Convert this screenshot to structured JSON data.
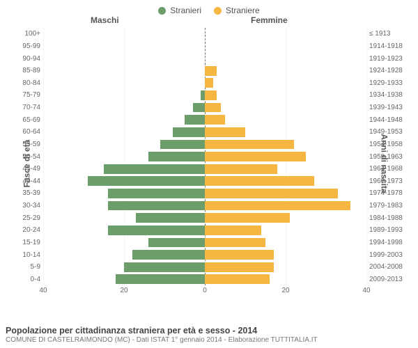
{
  "legend": {
    "male_label": "Stranieri",
    "female_label": "Straniere",
    "male_color": "#6b9e6b",
    "female_color": "#f5b642"
  },
  "headers": {
    "left": "Maschi",
    "right": "Femmine"
  },
  "yaxis": {
    "left_title": "Fasce di età",
    "right_title": "Anni di nascita"
  },
  "xaxis": {
    "max": 40,
    "ticks_left": [
      40,
      20,
      0
    ],
    "ticks_right": [
      0,
      20,
      40
    ],
    "tick_labels": [
      "40",
      "20",
      "0",
      "20",
      "40"
    ],
    "tick_positions_pct": [
      0,
      25,
      50,
      75,
      100
    ]
  },
  "grid": {
    "color": "#f5f5f5",
    "positions_pct": [
      0,
      25,
      50,
      75,
      100
    ]
  },
  "rows": [
    {
      "age": "100+",
      "birth": "≤ 1913",
      "m": 0,
      "f": 0
    },
    {
      "age": "95-99",
      "birth": "1914-1918",
      "m": 0,
      "f": 0
    },
    {
      "age": "90-94",
      "birth": "1919-1923",
      "m": 0,
      "f": 0
    },
    {
      "age": "85-89",
      "birth": "1924-1928",
      "m": 0,
      "f": 3
    },
    {
      "age": "80-84",
      "birth": "1929-1933",
      "m": 0,
      "f": 2
    },
    {
      "age": "75-79",
      "birth": "1934-1938",
      "m": 1,
      "f": 3
    },
    {
      "age": "70-74",
      "birth": "1939-1943",
      "m": 3,
      "f": 4
    },
    {
      "age": "65-69",
      "birth": "1944-1948",
      "m": 5,
      "f": 5
    },
    {
      "age": "60-64",
      "birth": "1949-1953",
      "m": 8,
      "f": 10
    },
    {
      "age": "55-59",
      "birth": "1954-1958",
      "m": 11,
      "f": 22
    },
    {
      "age": "50-54",
      "birth": "1959-1963",
      "m": 14,
      "f": 25
    },
    {
      "age": "45-49",
      "birth": "1964-1968",
      "m": 25,
      "f": 18
    },
    {
      "age": "40-44",
      "birth": "1969-1973",
      "m": 29,
      "f": 27
    },
    {
      "age": "35-39",
      "birth": "1974-1978",
      "m": 24,
      "f": 33
    },
    {
      "age": "30-34",
      "birth": "1979-1983",
      "m": 24,
      "f": 36
    },
    {
      "age": "25-29",
      "birth": "1984-1988",
      "m": 17,
      "f": 21
    },
    {
      "age": "20-24",
      "birth": "1989-1993",
      "m": 24,
      "f": 14
    },
    {
      "age": "15-19",
      "birth": "1994-1998",
      "m": 14,
      "f": 15
    },
    {
      "age": "10-14",
      "birth": "1999-2003",
      "m": 18,
      "f": 17
    },
    {
      "age": "5-9",
      "birth": "2004-2008",
      "m": 20,
      "f": 17
    },
    {
      "age": "0-4",
      "birth": "2009-2013",
      "m": 22,
      "f": 16
    }
  ],
  "colors": {
    "background": "#ffffff",
    "text": "#555555",
    "tick_text": "#666666",
    "centerline": "#777777"
  },
  "footer": {
    "title": "Popolazione per cittadinanza straniera per età e sesso - 2014",
    "subtitle": "COMUNE DI CASTELRAIMONDO (MC) - Dati ISTAT 1° gennaio 2014 - Elaborazione TUTTITALIA.IT"
  },
  "chart_type": "population-pyramid"
}
